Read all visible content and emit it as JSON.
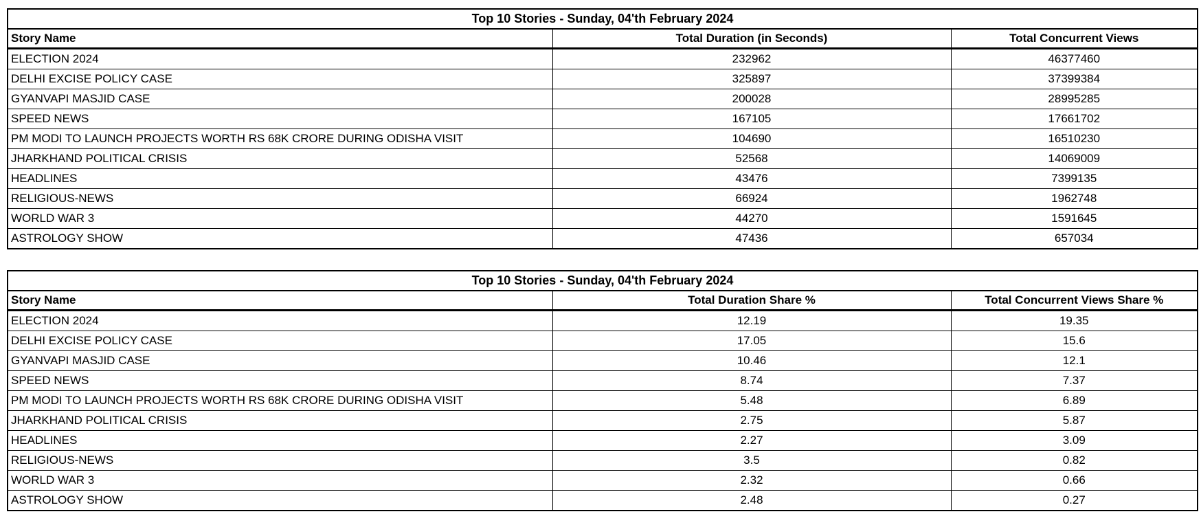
{
  "colors": {
    "background": "#ffffff",
    "text": "#000000",
    "border": "#000000"
  },
  "chart_data": [
    {
      "type": "table",
      "title": "Top 10 Stories - Sunday, 04'th February 2024",
      "columns": [
        "Story Name",
        "Total Duration (in Seconds)",
        "Total Concurrent Views"
      ],
      "rows": [
        [
          "ELECTION 2024",
          232962,
          46377460
        ],
        [
          "DELHI EXCISE POLICY CASE",
          325897,
          37399384
        ],
        [
          "GYANVAPI MASJID CASE",
          200028,
          28995285
        ],
        [
          "SPEED NEWS",
          167105,
          17661702
        ],
        [
          "PM MODI TO LAUNCH PROJECTS WORTH RS 68K CRORE DURING ODISHA VISIT",
          104690,
          16510230
        ],
        [
          "JHARKHAND POLITICAL CRISIS",
          52568,
          14069009
        ],
        [
          "HEADLINES",
          43476,
          7399135
        ],
        [
          "RELIGIOUS-NEWS",
          66924,
          1962748
        ],
        [
          "WORLD WAR 3",
          44270,
          1591645
        ],
        [
          "ASTROLOGY SHOW",
          47436,
          657034
        ]
      ]
    },
    {
      "type": "table",
      "title": "Top 10 Stories - Sunday, 04'th February 2024",
      "columns": [
        "Story Name",
        "Total Duration Share %",
        "Total Concurrent Views Share %"
      ],
      "rows": [
        [
          "ELECTION 2024",
          12.19,
          19.35
        ],
        [
          "DELHI EXCISE POLICY CASE",
          17.05,
          15.6
        ],
        [
          "GYANVAPI MASJID CASE",
          10.46,
          12.1
        ],
        [
          "SPEED NEWS",
          8.74,
          7.37
        ],
        [
          "PM MODI TO LAUNCH PROJECTS WORTH RS 68K CRORE DURING ODISHA VISIT",
          5.48,
          6.89
        ],
        [
          "JHARKHAND POLITICAL CRISIS",
          2.75,
          5.87
        ],
        [
          "HEADLINES",
          2.27,
          3.09
        ],
        [
          "RELIGIOUS-NEWS",
          3.5,
          0.82
        ],
        [
          "WORLD WAR 3",
          2.32,
          0.66
        ],
        [
          "ASTROLOGY SHOW",
          2.48,
          0.27
        ]
      ]
    }
  ]
}
